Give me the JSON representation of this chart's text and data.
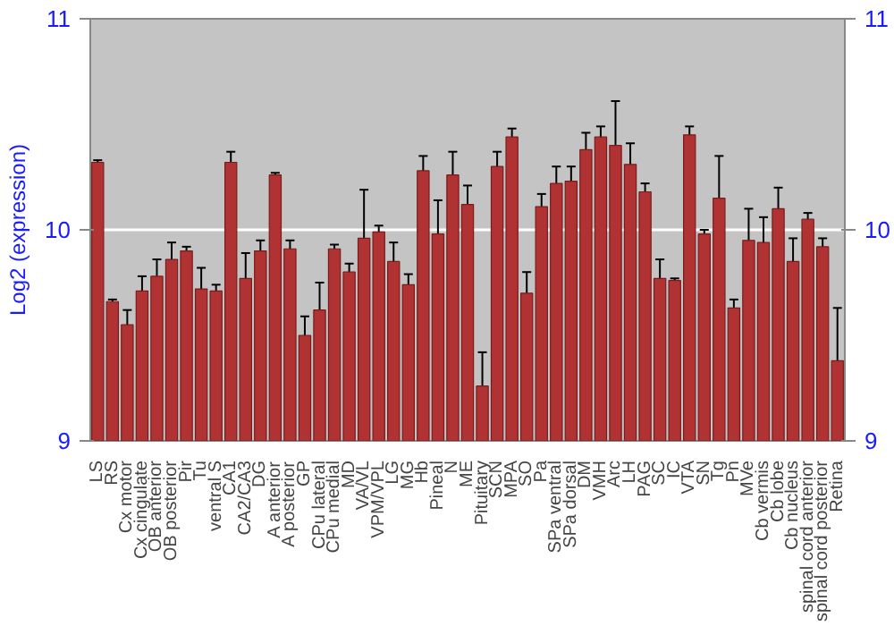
{
  "chart_data": {
    "type": "bar",
    "ylabel": "Log2 (expression)",
    "categories": [
      "LS",
      "RS",
      "Cx motor",
      "Cx cingulate",
      "OB anterior",
      "OB posterior",
      "Pir",
      "Tu",
      "ventral S",
      "CA1",
      "CA2/CA3",
      "DG",
      "A anterior",
      "A posterior",
      "GP",
      "CPu lateral",
      "CPu medial",
      "MD",
      "VA/VL",
      "VPM/VPL",
      "LG",
      "MG",
      "Hb",
      "Pineal",
      "N",
      "ME",
      "Pituitary",
      "SCN",
      "MPA",
      "SO",
      "Pa",
      "SPa ventral",
      "SPa dorsal",
      "DM",
      "VMH",
      "Arc",
      "LH",
      "PAG",
      "SC",
      "IC",
      "VTA",
      "SN",
      "Tg",
      "Pn",
      "MVe",
      "Cb vermis",
      "Cb lobe",
      "Cb nucleus",
      "spinal cord anterior",
      "spinal cord posterior",
      "Retina"
    ],
    "values": [
      10.32,
      9.66,
      9.55,
      9.71,
      9.78,
      9.86,
      9.9,
      9.72,
      9.71,
      10.32,
      9.77,
      9.9,
      10.26,
      9.91,
      9.5,
      9.62,
      9.91,
      9.8,
      9.96,
      9.99,
      9.85,
      9.74,
      10.28,
      9.98,
      10.26,
      10.12,
      9.26,
      10.3,
      10.44,
      9.7,
      10.11,
      10.22,
      10.23,
      10.38,
      10.44,
      10.4,
      10.31,
      10.18,
      9.77,
      9.76,
      10.45,
      9.98,
      10.15,
      9.63,
      9.95,
      9.94,
      10.1,
      9.85,
      10.05,
      9.92,
      9.38
    ],
    "errors": [
      0.01,
      0.01,
      0.07,
      0.07,
      0.08,
      0.08,
      0.02,
      0.1,
      0.03,
      0.05,
      0.12,
      0.05,
      0.01,
      0.04,
      0.09,
      0.13,
      0.02,
      0.04,
      0.23,
      0.03,
      0.09,
      0.05,
      0.07,
      0.16,
      0.11,
      0.09,
      0.16,
      0.07,
      0.04,
      0.1,
      0.06,
      0.08,
      0.07,
      0.08,
      0.05,
      0.21,
      0.1,
      0.04,
      0.09,
      0.01,
      0.04,
      0.02,
      0.2,
      0.04,
      0.15,
      0.12,
      0.1,
      0.11,
      0.03,
      0.04,
      0.25
    ],
    "color": "#b03232",
    "ylim": [
      9,
      11
    ],
    "yticks": [
      9,
      10,
      11
    ],
    "y2lim": [
      9,
      11
    ],
    "y2ticks": [
      9,
      10,
      11
    ],
    "grid": "y"
  }
}
